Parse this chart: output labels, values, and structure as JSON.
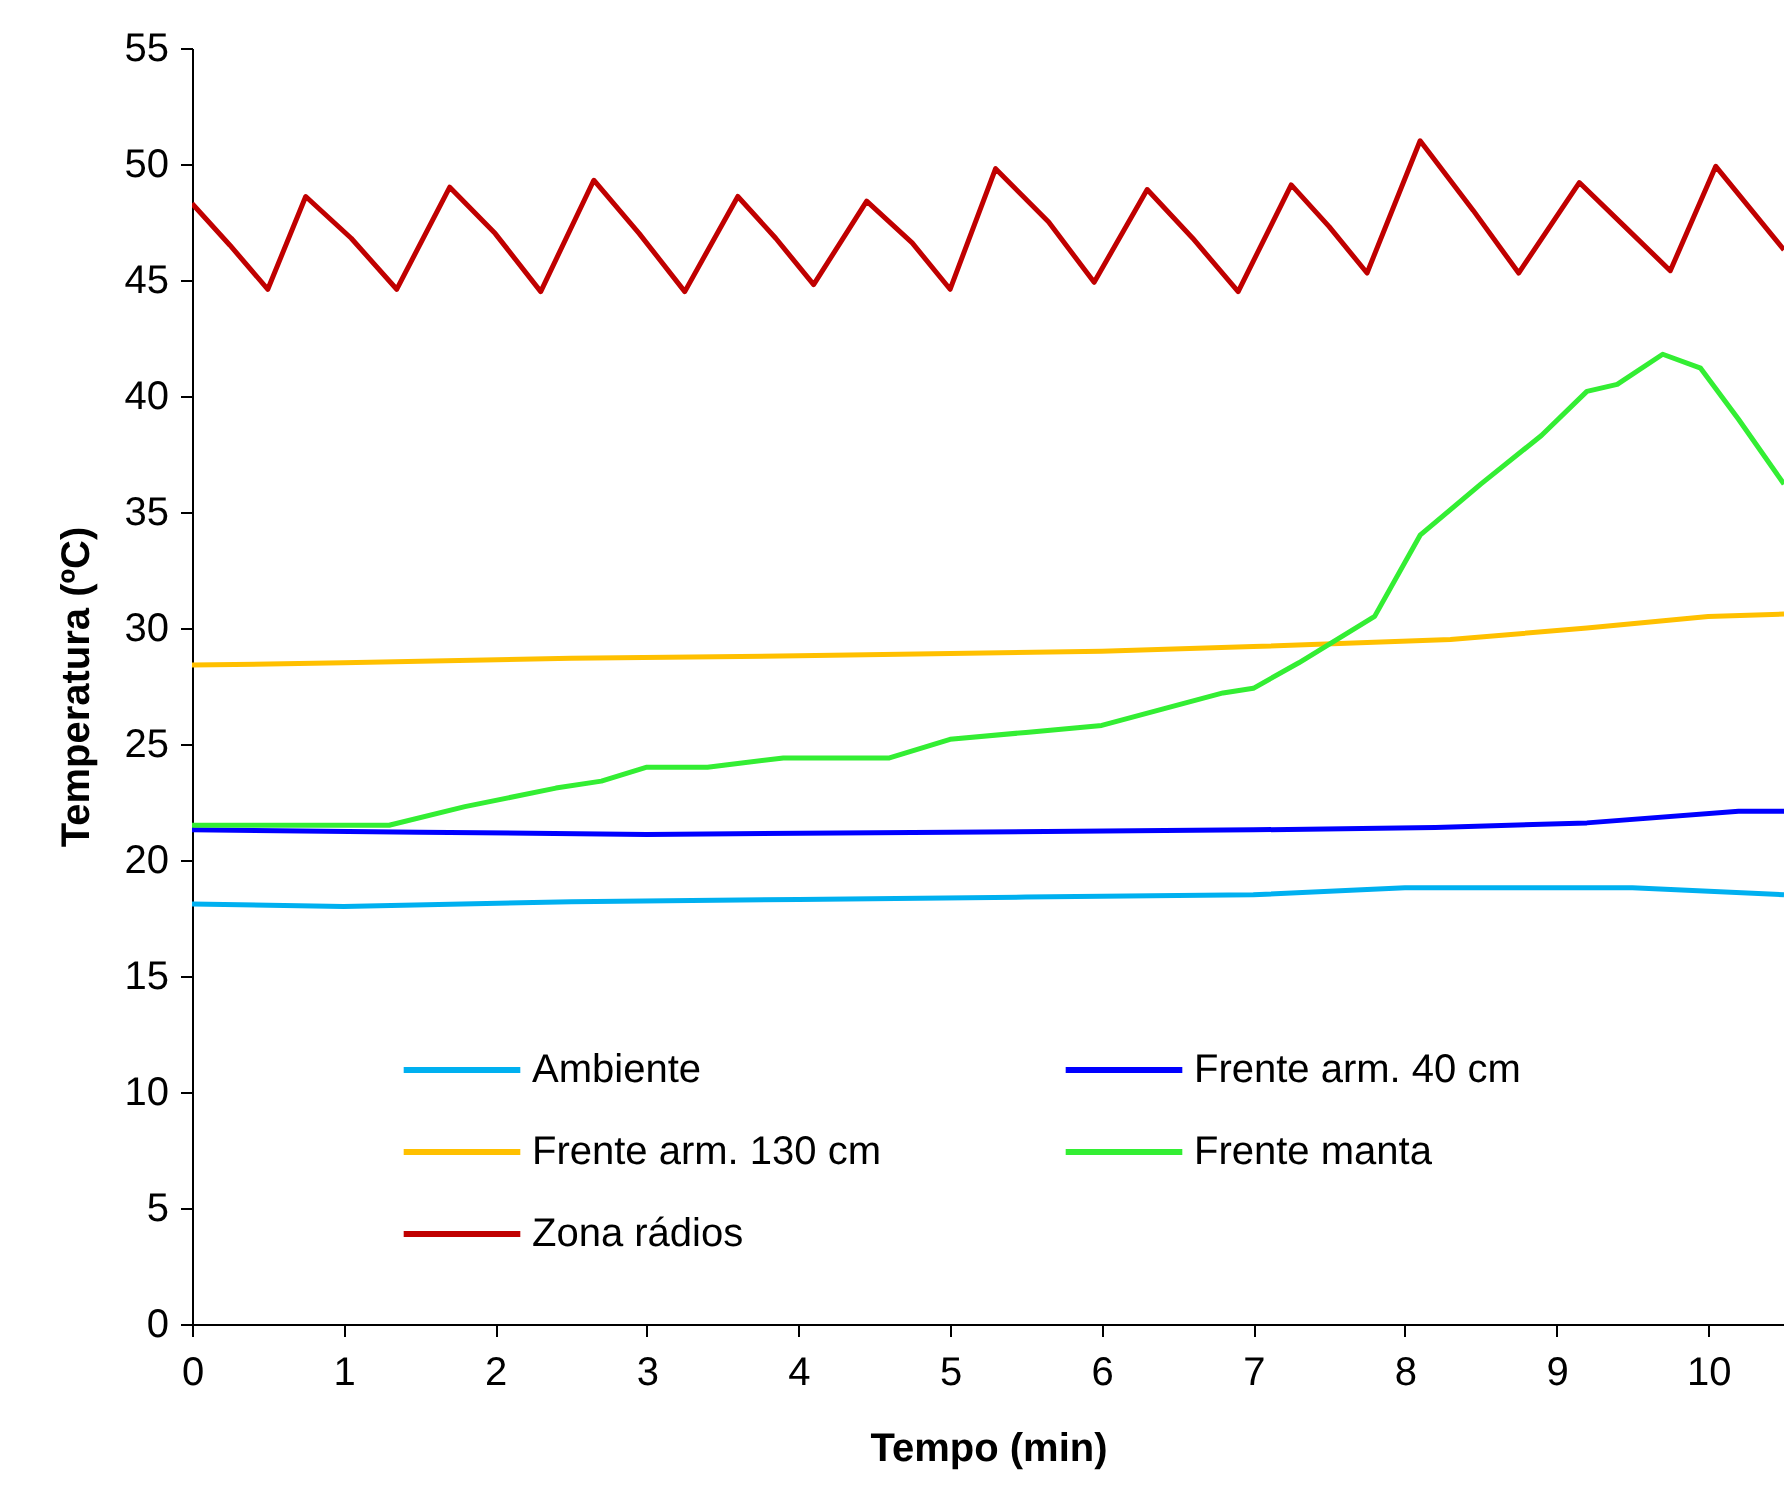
{
  "chart_data": {
    "type": "line",
    "xlabel": "Tempo (min)",
    "ylabel": "Temperatura (ºC)",
    "xlim": [
      0,
      10.5
    ],
    "ylim": [
      0,
      55
    ],
    "xticks": [
      0,
      1,
      2,
      3,
      4,
      5,
      6,
      7,
      8,
      9,
      10
    ],
    "yticks": [
      0,
      5,
      10,
      15,
      20,
      25,
      30,
      35,
      40,
      45,
      50,
      55
    ],
    "grid": false,
    "legend": "bottom left",
    "marker": "none",
    "line_style": "solid",
    "series": [
      {
        "name": "Ambiente",
        "color": "#00b0f0",
        "x": [
          0,
          1,
          2.5,
          4,
          5.5,
          7,
          8,
          9.5,
          10.5
        ],
        "values": [
          18.1,
          18.0,
          18.2,
          18.3,
          18.4,
          18.5,
          18.8,
          18.8,
          18.5
        ]
      },
      {
        "name": "Frente arm. 40 cm",
        "color": "#0000ff",
        "x": [
          0,
          1.5,
          3,
          5,
          7,
          8.2,
          9.2,
          10.2,
          10.5
        ],
        "values": [
          21.3,
          21.2,
          21.1,
          21.2,
          21.3,
          21.4,
          21.6,
          22.1,
          22.1
        ]
      },
      {
        "name": "Frente arm. 130 cm",
        "color": "#ffc000",
        "x": [
          0,
          1,
          2.5,
          4,
          6,
          7,
          8.3,
          9.2,
          10,
          10.5
        ],
        "values": [
          28.4,
          28.5,
          28.7,
          28.8,
          29.0,
          29.2,
          29.5,
          30.0,
          30.5,
          30.6
        ]
      },
      {
        "name": "Frente manta",
        "color": "#33ee33",
        "x": [
          0,
          1.3,
          1.8,
          2.4,
          2.7,
          3.0,
          3.4,
          3.9,
          4.6,
          5.0,
          5.5,
          6.0,
          6.4,
          6.8,
          7.0,
          7.3,
          7.8,
          8.1,
          8.5,
          8.9,
          9.2,
          9.4,
          9.7,
          9.95,
          10.2,
          10.5
        ],
        "values": [
          21.5,
          21.5,
          22.3,
          23.1,
          23.4,
          24.0,
          24.0,
          24.4,
          24.4,
          25.2,
          25.5,
          25.8,
          26.5,
          27.2,
          27.4,
          28.5,
          30.5,
          34.0,
          36.2,
          38.3,
          40.2,
          40.5,
          41.8,
          41.2,
          39.0,
          36.2
        ]
      },
      {
        "name": "Zona rádios",
        "color": "#c00000",
        "x": [
          0,
          0.25,
          0.5,
          0.75,
          1.05,
          1.35,
          1.7,
          2.0,
          2.3,
          2.65,
          2.95,
          3.25,
          3.6,
          3.85,
          4.1,
          4.45,
          4.75,
          5.0,
          5.3,
          5.65,
          5.95,
          6.3,
          6.6,
          6.9,
          7.25,
          7.5,
          7.75,
          8.1,
          8.45,
          8.75,
          9.15,
          9.45,
          9.75,
          10.05,
          10.5
        ],
        "values": [
          48.3,
          46.5,
          44.6,
          48.6,
          46.8,
          44.6,
          49.0,
          47.0,
          44.5,
          49.3,
          47.0,
          44.5,
          48.6,
          46.8,
          44.8,
          48.4,
          46.6,
          44.6,
          49.8,
          47.5,
          44.9,
          48.9,
          46.8,
          44.5,
          49.1,
          47.3,
          45.3,
          51.0,
          48.0,
          45.3,
          49.2,
          47.3,
          45.4,
          49.9,
          46.3
        ]
      }
    ]
  }
}
